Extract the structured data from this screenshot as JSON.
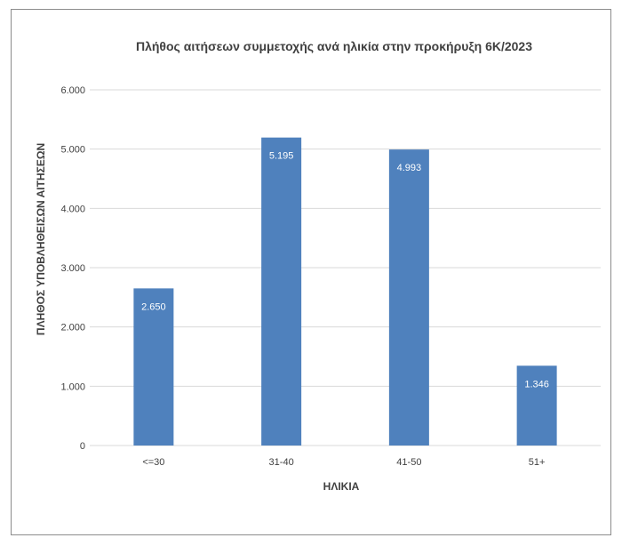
{
  "chart_data": {
    "type": "bar",
    "title": "Πλήθος αιτήσεων συμμετοχής ανά ηλικία στην προκήρυξη 6Κ/2023",
    "xlabel": "ΗΛΙΚΙΑ",
    "ylabel": "ΠΛΗΘΟΣ ΥΠΟΒΛΗΘΕΙΣΩΝ ΑΙΤΗΣΕΩΝ",
    "categories": [
      "<=30",
      "31-40",
      "41-50",
      "51+"
    ],
    "values": [
      2650,
      5195,
      4993,
      1346
    ],
    "value_labels": [
      "2.650",
      "5.195",
      "4.993",
      "1.346"
    ],
    "ylim": [
      0,
      6000
    ],
    "yticks": [
      0,
      1000,
      2000,
      3000,
      4000,
      5000,
      6000
    ],
    "ytick_labels": [
      "0",
      "1.000",
      "2.000",
      "3.000",
      "4.000",
      "5.000",
      "6.000"
    ],
    "bar_color": "#4f81bd",
    "grid": true,
    "legend": "none"
  }
}
